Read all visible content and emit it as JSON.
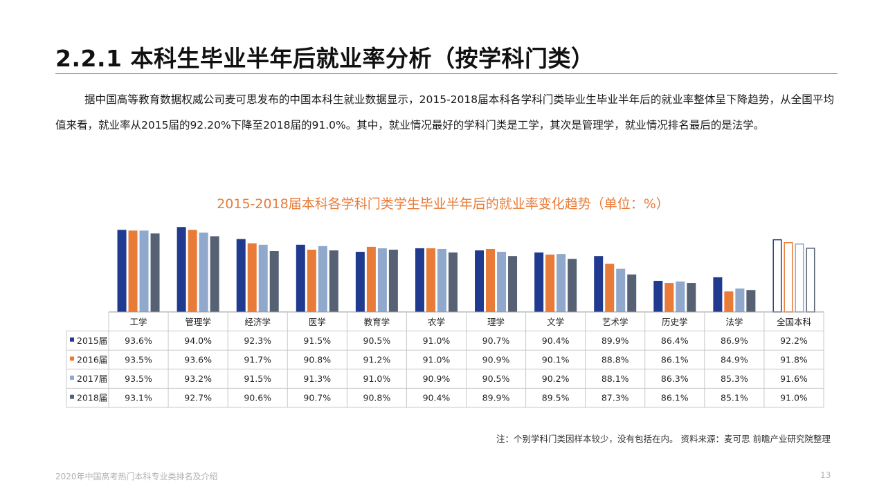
{
  "page": {
    "title": "2.2.1 本科生毕业半年后就业率分析（按学科门类）",
    "intro": "据中国高等教育数据权威公司麦可思发布的中国本科生就业数据显示，2015-2018届本科各学科门类毕业生毕业半年后的就业率整体呈下降趋势，从全国平均值来看，就业率从2015届的92.20%下降至2018届的91.0%。其中，就业情况最好的学科门类是工学，其次是管理学，就业情况排名最后的是法学。",
    "footnote": "注：个别学科门类因样本较少，没有包括在内。 资料来源：麦可思 前瞻产业研究院整理",
    "footer_left": "2020年中国高考热门本科专业类排名及介绍",
    "page_number": "13"
  },
  "colors": {
    "series": [
      "#1f3a8f",
      "#e87b38",
      "#8fa8cc",
      "#566274"
    ],
    "title_accent": "#e87b38"
  },
  "chart_data": {
    "type": "bar",
    "title": "2015-2018届本科各学科门类学生毕业半年后的就业率变化趋势（单位：%）",
    "categories": [
      "工学",
      "管理学",
      "经济学",
      "医学",
      "教育学",
      "农学",
      "理学",
      "文学",
      "艺术学",
      "历史学",
      "法学",
      "全国本科"
    ],
    "series": [
      {
        "name": "2015届",
        "values": [
          93.6,
          94.0,
          92.3,
          91.5,
          90.5,
          91.0,
          90.7,
          90.4,
          89.9,
          86.4,
          86.9,
          92.2
        ]
      },
      {
        "name": "2016届",
        "values": [
          93.5,
          93.6,
          91.7,
          90.8,
          91.2,
          91.0,
          90.9,
          90.1,
          88.8,
          86.1,
          84.9,
          91.8
        ]
      },
      {
        "name": "2017届",
        "values": [
          93.5,
          93.2,
          91.5,
          91.3,
          91.0,
          90.9,
          90.5,
          90.2,
          88.1,
          86.3,
          85.3,
          91.6
        ]
      },
      {
        "name": "2018届",
        "values": [
          93.1,
          92.7,
          90.6,
          90.7,
          90.8,
          90.4,
          89.9,
          89.5,
          87.3,
          86.1,
          85.1,
          91.0
        ]
      }
    ],
    "ylim": [
      82,
      95
    ],
    "outlined_categories": [
      "全国本科"
    ],
    "data_table": true
  }
}
